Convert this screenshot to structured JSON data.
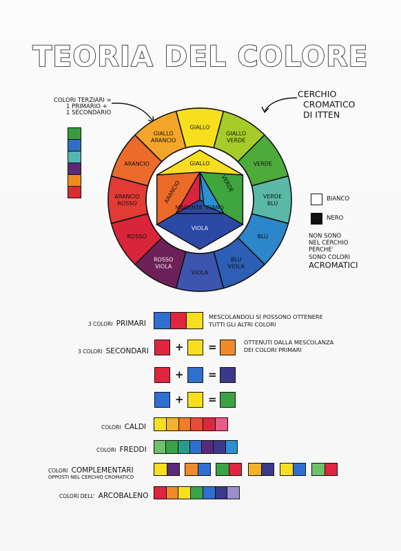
{
  "title": "TEORIA DEL COLORE",
  "tertiary_note": {
    "line1": "COLORI TERZIARI =",
    "line2": "1 PRIMARIO +",
    "line3": "1 SECONDARIO",
    "colors": [
      "#3a9a3f",
      "#2f6fc1",
      "#52b7b0",
      "#5a2a78",
      "#f08a1c",
      "#d82d2f"
    ]
  },
  "wheel_note": {
    "line1": "CERCHIO",
    "line2": "CROMATICO",
    "line3": "DI ITTEN"
  },
  "outer_ring": [
    {
      "label1": "GIALLO",
      "label2": "",
      "color": "#f7df1e"
    },
    {
      "label1": "GIALLO",
      "label2": "VERDE",
      "color": "#a6cc2a"
    },
    {
      "label1": "VERDE",
      "label2": "",
      "color": "#4dab3a"
    },
    {
      "label1": "VERDE",
      "label2": "BLU",
      "color": "#5ab9a6"
    },
    {
      "label1": "BLU",
      "label2": "",
      "color": "#2c86c9"
    },
    {
      "label1": "BLU",
      "label2": "VIOLA",
      "color": "#2c5fb5"
    },
    {
      "label1": "VIOLA",
      "label2": "",
      "color": "#3c56b0"
    },
    {
      "label1": "ROSSO",
      "label2": "VIOLA",
      "color": "#6e2058"
    },
    {
      "label1": "ROSSO",
      "label2": "",
      "color": "#d8253a"
    },
    {
      "label1": "ARANCIO",
      "label2": "ROSSO",
      "color": "#e23a34"
    },
    {
      "label1": "ARANCIO",
      "label2": "",
      "color": "#ec6a2a"
    },
    {
      "label1": "GIALLO",
      "label2": "ARANCIO",
      "color": "#f4a62a"
    }
  ],
  "inner": {
    "giallo": "GIALLO",
    "verde": "VERDE",
    "arancio": "ARANCIO",
    "magenta": "MAGENTA",
    "ciano": "CIANO",
    "viola": "VIOLA",
    "c_giallo": "#f8de1f",
    "c_verde": "#3ea63d",
    "c_arancio": "#ec6a28",
    "c_magenta": "#d9243f",
    "c_ciano": "#2b8fd4",
    "c_viola": "#2c49a6"
  },
  "achromatic": {
    "bianco": "BIANCO",
    "nero": "NERO",
    "note1": "NON SONO",
    "note2": "NEL CERCHIO",
    "note3": "PERCHE'",
    "note4": "SONO COLORI",
    "note5": "ACROMATICI"
  },
  "primari": {
    "label_small": "3 COLORI",
    "label_big": "PRIMARI",
    "colors": [
      "#2f6fd0",
      "#e0263f",
      "#f7df1e"
    ],
    "note1": "MESCOLANDOLI SI POSSONO OTTENERE",
    "note2": "TUTTI GLI ALTRI COLORI"
  },
  "secondari": {
    "label_small": "3 COLORI",
    "label_big": "SECONDARI",
    "plus": "+",
    "equals": "=",
    "note1": "OTTENUTI DALLA MESCOLANZA",
    "note2": "DEI COLORI PRIMARI",
    "rows": [
      {
        "a": "#e0263f",
        "b": "#f7df1e",
        "r": "#f08a2a"
      },
      {
        "a": "#e0263f",
        "b": "#2f6fd0",
        "r": "#3b3a8a"
      },
      {
        "a": "#2f6fd0",
        "b": "#f7df1e",
        "r": "#3aa345"
      }
    ]
  },
  "caldi": {
    "label_small": "COLORI",
    "label_big": "CALDI",
    "colors": [
      "#f7df1e",
      "#f4b12a",
      "#ef7d2a",
      "#ea4a36",
      "#e0263f",
      "#ec5a8a"
    ]
  },
  "freddi": {
    "label_small": "COLORI",
    "label_big": "FREDDI",
    "colors": [
      "#6fc06a",
      "#3aa345",
      "#2a9a8a",
      "#2f6fd0",
      "#5a2a78",
      "#3b3a8a",
      "#2b8fd4"
    ]
  },
  "complementari": {
    "label_small": "COLORI",
    "label_big": "COMPLEMENTARI",
    "sub": "OPPOSTI NEL CERCHIO CROMATICO",
    "pairs": [
      [
        "#f7df1e",
        "#5a2a78"
      ],
      [
        "#f08a2a",
        "#2f6fd0"
      ],
      [
        "#3aa345",
        "#e0263f"
      ],
      [
        "#f4b12a",
        "#3b3a8a"
      ],
      [
        "#f7df1e",
        "#2f6fd0"
      ],
      [
        "#6fc06a",
        "#e0263f"
      ]
    ]
  },
  "arcobaleno": {
    "label_small": "COLORI DELL'",
    "label_big": "ARCOBALENO",
    "colors": [
      "#e0263f",
      "#f08a2a",
      "#f7df1e",
      "#3aa345",
      "#2f6fd0",
      "#3b3a8a",
      "#9d8fd0"
    ]
  }
}
